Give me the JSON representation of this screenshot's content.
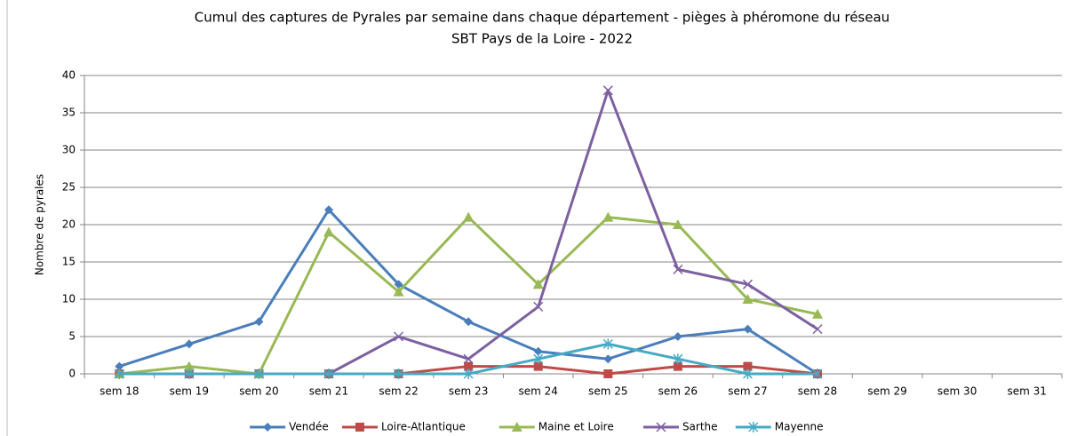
{
  "chart_data": {
    "type": "line",
    "title": [
      "Cumul des captures de Pyrales par semaine dans chaque département - pièges à phéromone du réseau",
      "SBT Pays de la Loire - 2022"
    ],
    "y_label": "Nombre de pyrales",
    "categories": [
      "sem 18",
      "sem 19",
      "sem 20",
      "sem 21",
      "sem 22",
      "sem 23",
      "sem 24",
      "sem 25",
      "sem 26",
      "sem 27",
      "sem 28",
      "sem 29",
      "sem 30",
      "sem 31"
    ],
    "series": [
      {
        "name": "Vendée",
        "color": "#4a7ebb",
        "marker": "diamond",
        "values": [
          1,
          4,
          7,
          22,
          12,
          7,
          3,
          2,
          5,
          6,
          0,
          null,
          null,
          null
        ]
      },
      {
        "name": "Loire-Atlantique",
        "color": "#be4b48",
        "marker": "square",
        "values": [
          0,
          0,
          0,
          0,
          0,
          1,
          1,
          0,
          1,
          1,
          0,
          null,
          null,
          null
        ]
      },
      {
        "name": "Maine et Loire",
        "color": "#98b954",
        "marker": "triangle",
        "values": [
          0,
          1,
          0,
          19,
          11,
          21,
          12,
          21,
          20,
          10,
          8,
          null,
          null,
          null
        ]
      },
      {
        "name": "Sarthe",
        "color": "#7d60a0",
        "marker": "x",
        "values": [
          0,
          0,
          0,
          0,
          5,
          2,
          9,
          38,
          14,
          12,
          6,
          null,
          null,
          null
        ]
      },
      {
        "name": "Mayenne",
        "color": "#46aac5",
        "marker": "star",
        "values": [
          0,
          0,
          0,
          0,
          0,
          0,
          2,
          4,
          2,
          0,
          0,
          null,
          null,
          null
        ]
      }
    ],
    "ylim": [
      0,
      40
    ],
    "yticks": [
      0,
      5,
      10,
      15,
      20,
      25,
      30,
      35,
      40
    ],
    "grid": true,
    "legend": "bottom"
  }
}
